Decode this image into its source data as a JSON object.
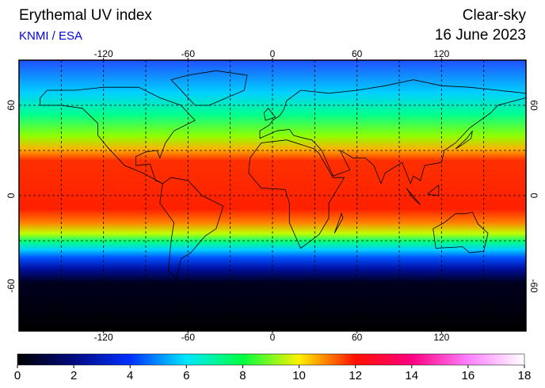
{
  "header": {
    "title": "Erythemal UV index",
    "subtitle": "KNMI / ESA",
    "mode": "Clear-sky",
    "date": "16 June 2023"
  },
  "map": {
    "lon_range": [
      -180,
      180
    ],
    "lat_range": [
      -90,
      90
    ],
    "lon_ticks": [
      -120,
      -60,
      0,
      60,
      120
    ],
    "lat_ticks": [
      -60,
      0,
      60
    ],
    "lon_grid": [
      -150,
      -120,
      -90,
      -60,
      -30,
      0,
      30,
      60,
      90,
      120,
      150
    ],
    "lat_grid": [
      -60,
      -30,
      0,
      30,
      60
    ]
  },
  "colorbar": {
    "range": [
      0,
      18
    ],
    "ticks": [
      0,
      2,
      4,
      6,
      8,
      10,
      12,
      14,
      16,
      18
    ],
    "colors": [
      "#000000",
      "#000a80",
      "#0030ff",
      "#00e8ff",
      "#00ff40",
      "#fff000",
      "#ff1000",
      "#ff0080",
      "#ff80ff",
      "#ffffff"
    ]
  }
}
